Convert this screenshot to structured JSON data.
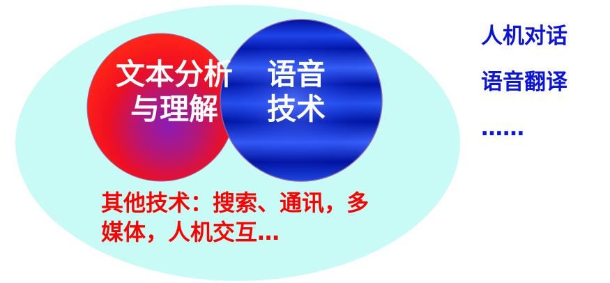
{
  "diagram": {
    "text_analysis_line1": "文本分析",
    "text_analysis_line2": "与理解",
    "speech_line1": "语音",
    "speech_line2": "技术",
    "other_tech_line1": "其他技术：搜索、通讯，多",
    "other_tech_line2": "媒体，人机交互…"
  },
  "side_list": {
    "items": [
      "人机对话",
      "语音翻译",
      "……"
    ]
  },
  "colors": {
    "outer_ellipse": "#c8fbf5",
    "text_circle_red": "#ff1a1a",
    "text_circle_purple": "#8a1cb6",
    "speech_circle_blue": "#0012a8",
    "speech_circle_bright": "#3a63ff",
    "side_text": "#0a14dc",
    "other_text": "#ff0000"
  }
}
